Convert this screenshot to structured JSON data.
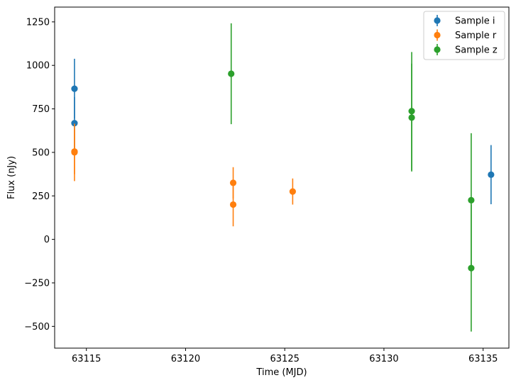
{
  "chart_data": {
    "type": "scatter",
    "title": "",
    "xlabel": "Time (MJD)",
    "ylabel": "Flux (nJy)",
    "xlim": [
      63113.4,
      63136.3
    ],
    "ylim": [
      -625,
      1335
    ],
    "xticks": [
      63115,
      63120,
      63125,
      63130,
      63135
    ],
    "xtick_labels": [
      "63115",
      "63120",
      "63125",
      "63130",
      "63135"
    ],
    "yticks": [
      -500,
      -250,
      0,
      250,
      500,
      750,
      1000,
      1250
    ],
    "ytick_labels": [
      "−500",
      "−250",
      "0",
      "250",
      "500",
      "750",
      "1000",
      "1250"
    ],
    "grid": false,
    "legend_position": "top-right",
    "series": [
      {
        "name": "Sample i",
        "color": "#1f77b4",
        "points": [
          {
            "x": 63114.4,
            "y": 866,
            "err": 172
          },
          {
            "x": 63114.4,
            "y": 668,
            "err": 150
          },
          {
            "x": 63135.4,
            "y": 372,
            "err": 170
          }
        ]
      },
      {
        "name": "Sample r",
        "color": "#ff7f0e",
        "points": [
          {
            "x": 63114.4,
            "y": 505,
            "err": 130
          },
          {
            "x": 63114.4,
            "y": 500,
            "err": 165
          },
          {
            "x": 63122.4,
            "y": 325,
            "err": 90
          },
          {
            "x": 63122.4,
            "y": 200,
            "err": 125
          },
          {
            "x": 63125.4,
            "y": 275,
            "err": 75
          }
        ]
      },
      {
        "name": "Sample z",
        "color": "#2ca02c",
        "points": [
          {
            "x": 63122.3,
            "y": 952,
            "err": 290
          },
          {
            "x": 63131.4,
            "y": 737,
            "err": 340
          },
          {
            "x": 63131.4,
            "y": 700,
            "err": 310
          },
          {
            "x": 63134.4,
            "y": 225,
            "err": 385
          },
          {
            "x": 63134.4,
            "y": -165,
            "err": 365
          }
        ]
      }
    ]
  }
}
